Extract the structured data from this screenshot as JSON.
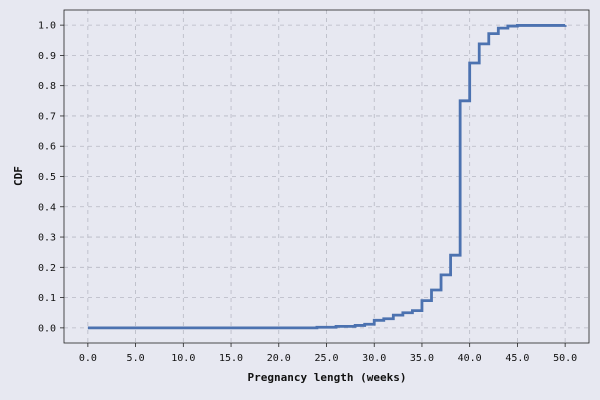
{
  "chart_data": {
    "type": "line",
    "step": true,
    "xlabel": "Pregnancy length (weeks)",
    "ylabel": "CDF",
    "xlim": [
      -2.5,
      52.5
    ],
    "ylim": [
      -0.05,
      1.05
    ],
    "grid": true,
    "xticks": [
      "0.0",
      "5.0",
      "10.0",
      "15.0",
      "20.0",
      "25.0",
      "30.0",
      "35.0",
      "40.0",
      "45.0",
      "50.0"
    ],
    "yticks": [
      "0.0",
      "0.1",
      "0.2",
      "0.3",
      "0.4",
      "0.5",
      "0.6",
      "0.7",
      "0.8",
      "0.9",
      "1.0"
    ],
    "series": [
      {
        "color": "#4c72b0",
        "x": [
          0,
          24,
          26,
          28,
          29,
          30,
          31,
          32,
          33,
          34,
          35,
          36,
          37,
          38,
          39,
          40,
          41,
          42,
          43,
          44,
          45,
          50
        ],
        "y": [
          0.0,
          0.002,
          0.005,
          0.008,
          0.012,
          0.025,
          0.03,
          0.042,
          0.05,
          0.057,
          0.09,
          0.125,
          0.175,
          0.24,
          0.75,
          0.875,
          0.938,
          0.972,
          0.99,
          0.997,
          0.999,
          1.0
        ]
      }
    ]
  },
  "colors": {
    "background": "#e7e8f1",
    "grid": "#b7b8c4",
    "line": "#4c72b0"
  }
}
